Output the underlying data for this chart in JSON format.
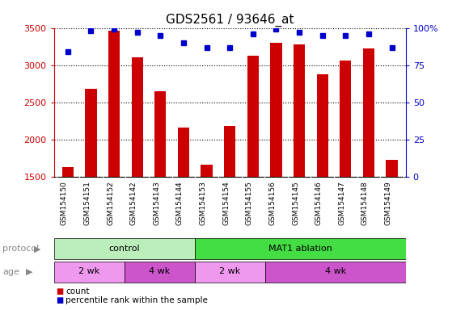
{
  "title": "GDS2561 / 93646_at",
  "categories": [
    "GSM154150",
    "GSM154151",
    "GSM154152",
    "GSM154142",
    "GSM154143",
    "GSM154144",
    "GSM154153",
    "GSM154154",
    "GSM154155",
    "GSM154156",
    "GSM154145",
    "GSM154146",
    "GSM154147",
    "GSM154148",
    "GSM154149"
  ],
  "bar_values": [
    1630,
    2680,
    3460,
    3100,
    2650,
    2160,
    1660,
    2180,
    3130,
    3300,
    3280,
    2880,
    3060,
    3220,
    1730
  ],
  "bar_color": "#cc0000",
  "percentile_values": [
    84,
    98,
    99,
    97,
    95,
    90,
    87,
    87,
    96,
    99,
    97,
    95,
    95,
    96,
    87
  ],
  "percentile_color": "#0000cc",
  "ylim_left": [
    1500,
    3500
  ],
  "ylim_right": [
    0,
    100
  ],
  "yticks_left": [
    1500,
    2000,
    2500,
    3000,
    3500
  ],
  "yticks_right": [
    0,
    25,
    50,
    75,
    100
  ],
  "ytick_labels_right": [
    "0",
    "25",
    "50",
    "75",
    "100%"
  ],
  "background_color": "#ffffff",
  "xticklabel_bg": "#c8c8c8",
  "protocol_labels": [
    {
      "text": "control",
      "start": 0,
      "end": 6,
      "color": "#bbeebb"
    },
    {
      "text": "MAT1 ablation",
      "start": 6,
      "end": 15,
      "color": "#44dd44"
    }
  ],
  "age_labels": [
    {
      "text": "2 wk",
      "start": 0,
      "end": 3,
      "color": "#ee99ee"
    },
    {
      "text": "4 wk",
      "start": 3,
      "end": 6,
      "color": "#cc55cc"
    },
    {
      "text": "2 wk",
      "start": 6,
      "end": 9,
      "color": "#ee99ee"
    },
    {
      "text": "4 wk",
      "start": 9,
      "end": 15,
      "color": "#cc55cc"
    }
  ],
  "legend_items": [
    {
      "label": "count",
      "color": "#cc0000"
    },
    {
      "label": "percentile rank within the sample",
      "color": "#0000cc"
    }
  ],
  "protocol_arrow_label": "protocol",
  "age_arrow_label": "age",
  "title_fontsize": 11,
  "tick_fontsize": 8,
  "bar_width": 0.5
}
